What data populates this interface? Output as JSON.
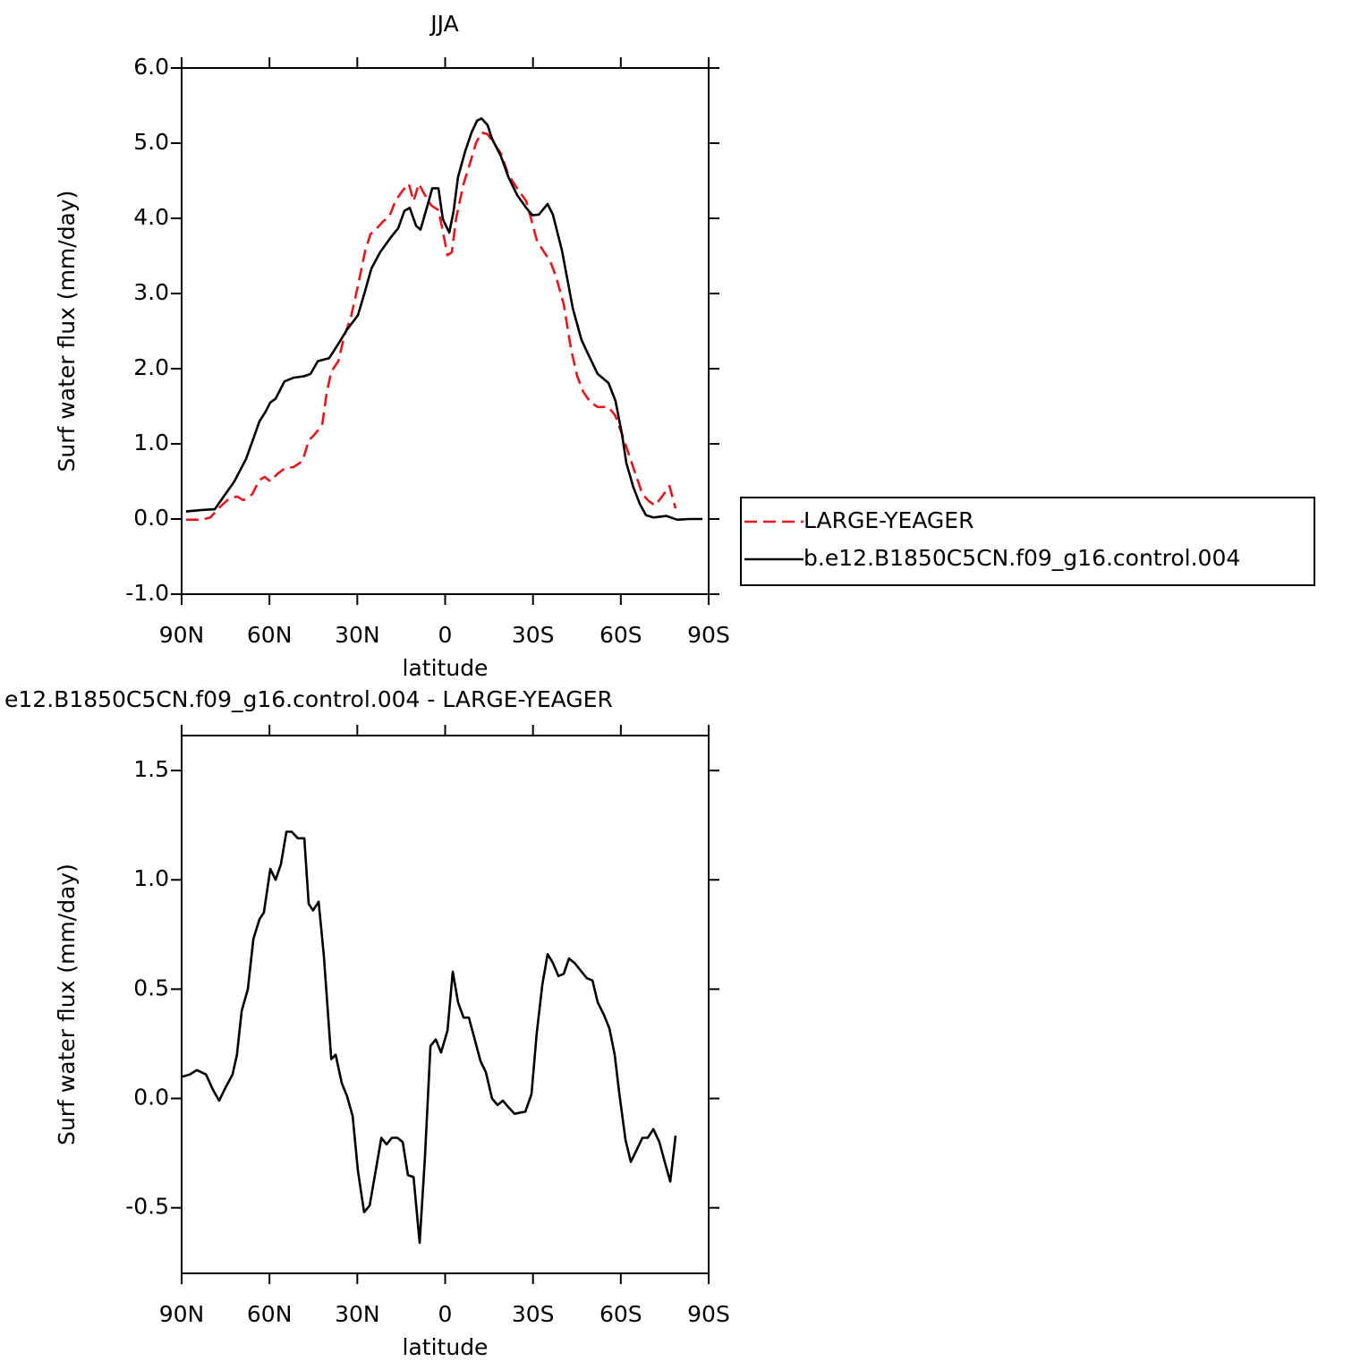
{
  "chart_data": [
    {
      "type": "line",
      "title": "JJA",
      "x_label": "latitude",
      "y_label": "Surf water flux (mm/day)",
      "xlim": [
        90,
        -90
      ],
      "xticks": [
        {
          "value": 90,
          "label": "90N"
        },
        {
          "value": 60,
          "label": "60N"
        },
        {
          "value": 30,
          "label": "30N"
        },
        0,
        {
          "value": -30,
          "label": "30S"
        },
        {
          "value": -60,
          "label": "60S"
        },
        {
          "value": -90,
          "label": "90S"
        }
      ],
      "ylim": [
        -1,
        6
      ],
      "yticks": [
        {
          "value": -1,
          "label": "-1.0"
        },
        {
          "value": 0,
          "label": "0.0"
        },
        {
          "value": 1,
          "label": "1.0"
        },
        {
          "value": 2,
          "label": "2.0"
        },
        {
          "value": 3,
          "label": "3.0"
        },
        {
          "value": 4,
          "label": "4.0"
        },
        {
          "value": 5,
          "label": "5.0"
        },
        {
          "value": 6,
          "label": "6.0"
        }
      ],
      "legend": "right",
      "series": [
        {
          "name": "LARGE-YEAGER",
          "color": "#e8141c",
          "line_style": "dashed",
          "x": [
            88.5,
            83,
            80.2,
            77.2,
            74.1,
            71.1,
            68.9,
            65.9,
            63.4,
            61.6,
            59.7,
            57.3,
            54.9,
            51.8,
            48.7,
            46.6,
            44.5,
            42,
            40.5,
            38.9,
            36.5,
            34.4,
            32.2,
            29.8,
            27.3,
            25.5,
            23.7,
            21.2,
            19.1,
            17,
            14.5,
            12.4,
            10.8,
            9,
            6.9,
            4.7,
            2.3,
            0.8,
            -0.8,
            -2.3,
            -3.8,
            -6.3,
            -8.7,
            -10.5,
            -12.4,
            -14.5,
            -16.7,
            -19.1,
            -21.6,
            -24.6,
            -27.7,
            -29.8,
            -31.3,
            -33.8,
            -35.9,
            -38,
            -40.5,
            -43,
            -45.1,
            -47.2,
            -49.7,
            -52.1,
            -55.8,
            -58.2,
            -60.4,
            -62.5,
            -65,
            -67.4,
            -69.5,
            -71.7,
            -74.1,
            -76.6,
            -78.7
          ],
          "values": [
            -0.01,
            -0.01,
            0.02,
            0.15,
            0.26,
            0.3,
            0.25,
            0.33,
            0.52,
            0.56,
            0.5,
            0.6,
            0.67,
            0.69,
            0.77,
            1.04,
            1.13,
            1.25,
            1.67,
            1.96,
            2.1,
            2.44,
            2.68,
            3.1,
            3.57,
            3.79,
            3.85,
            3.96,
            4.02,
            4.23,
            4.37,
            4.46,
            4.23,
            4.46,
            4.31,
            4.17,
            4.11,
            3.83,
            3.51,
            3.55,
            4.01,
            4.46,
            4.76,
            5.0,
            5.14,
            5.12,
            5.0,
            4.86,
            4.58,
            4.4,
            4.23,
            3.93,
            3.71,
            3.55,
            3.43,
            3.21,
            2.86,
            2.26,
            1.9,
            1.69,
            1.55,
            1.49,
            1.49,
            1.37,
            1.13,
            0.89,
            0.6,
            0.33,
            0.24,
            0.18,
            0.3,
            0.44,
            0.14
          ]
        },
        {
          "name": "b.e12.B1850C5CN.f09_g16.control.004",
          "color": "#000000",
          "line_style": "solid",
          "x": [
            88.5,
            83,
            78.7,
            75.6,
            72,
            68,
            65.5,
            63.4,
            61.3,
            59.7,
            57.9,
            54.9,
            51.8,
            48.1,
            46,
            43.5,
            39.6,
            36.5,
            33.5,
            29.8,
            27.3,
            25.2,
            22.2,
            18.5,
            16,
            13.9,
            12.1,
            9.9,
            8.4,
            5.9,
            4.4,
            2.3,
            0.8,
            -1.4,
            -2.9,
            -4.4,
            -6.9,
            -9,
            -10.9,
            -12.4,
            -14.5,
            -16,
            -19.1,
            -21.6,
            -24.6,
            -27.7,
            -29.8,
            -32,
            -35,
            -36.8,
            -39.9,
            -43.6,
            -46.6,
            -49.1,
            -52.1,
            -55.8,
            -58.2,
            -60.4,
            -61.9,
            -64.3,
            -66.5,
            -68.6,
            -71.1,
            -75.6,
            -77.8,
            -79.3,
            -83.3,
            -87.9
          ],
          "values": [
            0.1,
            0.12,
            0.13,
            0.3,
            0.5,
            0.8,
            1.07,
            1.3,
            1.43,
            1.55,
            1.6,
            1.83,
            1.88,
            1.9,
            1.93,
            2.1,
            2.14,
            2.33,
            2.52,
            2.71,
            3.04,
            3.33,
            3.55,
            3.75,
            3.87,
            4.1,
            4.14,
            3.9,
            3.85,
            4.19,
            4.4,
            4.4,
            3.99,
            3.81,
            4.1,
            4.55,
            4.9,
            5.14,
            5.3,
            5.33,
            5.24,
            5.06,
            4.82,
            4.55,
            4.31,
            4.14,
            4.04,
            4.05,
            4.19,
            4.05,
            3.57,
            2.8,
            2.38,
            2.17,
            1.93,
            1.81,
            1.57,
            1.13,
            0.74,
            0.42,
            0.2,
            0.05,
            0.02,
            0.04,
            0.01,
            -0.01,
            0,
            0
          ]
        }
      ]
    },
    {
      "type": "line",
      "title": "e12.B1850C5CN.f09_g16.control.004 - LARGE-YEAGER",
      "x_label": "latitude",
      "y_label": "Surf water flux (mm/day)",
      "xlim": [
        90,
        -90
      ],
      "xticks": [
        {
          "value": 90,
          "label": "90N"
        },
        {
          "value": 60,
          "label": "60N"
        },
        {
          "value": 30,
          "label": "30N"
        },
        0,
        {
          "value": -30,
          "label": "30S"
        },
        {
          "value": -60,
          "label": "60S"
        },
        {
          "value": -90,
          "label": "90S"
        }
      ],
      "ylim": [
        -0.8,
        1.66
      ],
      "yticks": [
        -0.5,
        {
          "value": 0,
          "label": "0.0"
        },
        0.5,
        {
          "value": 1,
          "label": "1.0"
        },
        1.5
      ],
      "series": [
        {
          "color": "#000000",
          "line_style": "solid",
          "x": [
            89.7,
            87.2,
            84.8,
            81.7,
            79.3,
            77.2,
            75,
            72.6,
            71.1,
            69.5,
            67.4,
            65.5,
            63.4,
            61.9,
            59.7,
            57.9,
            56.1,
            54.2,
            52.4,
            50.3,
            48.1,
            46.6,
            45.1,
            43.2,
            41.4,
            38.9,
            37.4,
            35.3,
            33.5,
            31.6,
            29.8,
            27.7,
            25.8,
            23.7,
            21.8,
            20,
            18.2,
            16.3,
            14.5,
            12.7,
            10.8,
            8.7,
            6.9,
            5,
            3.2,
            1.4,
            -0.8,
            -2.6,
            -4.4,
            -6.3,
            -8.1,
            -9.9,
            -12.1,
            -13.9,
            -16,
            -17.9,
            -19.7,
            -21.6,
            -23.7,
            -27.4,
            -29.5,
            -31.3,
            -33.2,
            -35,
            -36.8,
            -38.7,
            -40.5,
            -42.3,
            -44.2,
            -46.6,
            -48.4,
            -50.3,
            -52.1,
            -54.3,
            -56.1,
            -57.9,
            -59.4,
            -61.6,
            -63.4,
            -65.6,
            -67.4,
            -69.2,
            -71.1,
            -73.2,
            -75,
            -76.9,
            -78.7
          ],
          "values": [
            0.1,
            0.11,
            0.13,
            0.11,
            0.04,
            -0.01,
            0.05,
            0.11,
            0.2,
            0.4,
            0.5,
            0.73,
            0.82,
            0.85,
            1.05,
            1.0,
            1.07,
            1.22,
            1.22,
            1.19,
            1.19,
            0.89,
            0.86,
            0.9,
            0.65,
            0.18,
            0.2,
            0.07,
            0.01,
            -0.08,
            -0.33,
            -0.52,
            -0.49,
            -0.33,
            -0.18,
            -0.21,
            -0.18,
            -0.18,
            -0.2,
            -0.35,
            -0.36,
            -0.66,
            -0.27,
            0.24,
            0.27,
            0.21,
            0.31,
            0.58,
            0.44,
            0.37,
            0.37,
            0.28,
            0.17,
            0.12,
            0,
            -0.03,
            -0.01,
            -0.04,
            -0.07,
            -0.06,
            0.02,
            0.3,
            0.52,
            0.66,
            0.62,
            0.56,
            0.57,
            0.64,
            0.62,
            0.58,
            0.55,
            0.54,
            0.44,
            0.38,
            0.32,
            0.2,
            0.03,
            -0.19,
            -0.29,
            -0.23,
            -0.18,
            -0.18,
            -0.14,
            -0.2,
            -0.29,
            -0.38,
            -0.17
          ]
        }
      ]
    }
  ]
}
